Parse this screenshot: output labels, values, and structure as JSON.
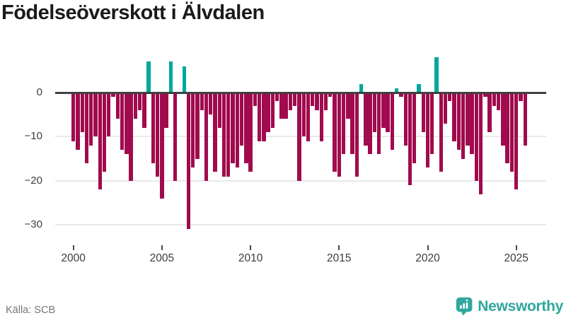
{
  "title": "Födelseöverskott i Älvdalen",
  "source": "Källa: SCB",
  "brand": {
    "name": "Newsworthy"
  },
  "colors": {
    "negative_bar": "#a10a4d",
    "positive_bar": "#00a79f",
    "zero_line": "#404040",
    "gridline": "#e9e9e9",
    "title_text": "#1a1a1a",
    "axis_text": "#3d3d3d",
    "source_text": "#757575",
    "brand_teal": "#2fa79c"
  },
  "chart_data": {
    "type": "bar",
    "title": "Födelseöverskott i Älvdalen",
    "x_tick_labels": [
      "2000",
      "2005",
      "2010",
      "2015",
      "2020",
      "2025"
    ],
    "y_tick_labels": [
      "0",
      "−10",
      "−20",
      "−30"
    ],
    "y_ticks": [
      0,
      -10,
      -20,
      -30
    ],
    "ylim": [
      -33,
      9
    ],
    "grid": "horizontal",
    "points": [
      [
        "2000Q1",
        -11
      ],
      [
        "2000Q2",
        -13
      ],
      [
        "2000Q3",
        -9
      ],
      [
        "2000Q4",
        -16
      ],
      [
        "2001Q1",
        -12
      ],
      [
        "2001Q2",
        -10
      ],
      [
        "2001Q3",
        -22
      ],
      [
        "2001Q4",
        -18
      ],
      [
        "2002Q1",
        -10
      ],
      [
        "2002Q2",
        -1
      ],
      [
        "2002Q3",
        -6
      ],
      [
        "2002Q4",
        -13
      ],
      [
        "2003Q1",
        -14
      ],
      [
        "2003Q2",
        -20
      ],
      [
        "2003Q3",
        -6
      ],
      [
        "2003Q4",
        -4
      ],
      [
        "2004Q1",
        -8
      ],
      [
        "2004Q2",
        7
      ],
      [
        "2004Q3",
        -16
      ],
      [
        "2004Q4",
        -19
      ],
      [
        "2005Q1",
        -24
      ],
      [
        "2005Q2",
        -8
      ],
      [
        "2005Q3",
        7
      ],
      [
        "2005Q4",
        -20
      ],
      [
        "2006Q1",
        0
      ],
      [
        "2006Q2",
        6
      ],
      [
        "2006Q3",
        -31
      ],
      [
        "2006Q4",
        -17
      ],
      [
        "2007Q1",
        -15
      ],
      [
        "2007Q2",
        -4
      ],
      [
        "2007Q3",
        -20
      ],
      [
        "2007Q4",
        -5
      ],
      [
        "2008Q1",
        -18
      ],
      [
        "2008Q2",
        -8
      ],
      [
        "2008Q3",
        -19
      ],
      [
        "2008Q4",
        -19
      ],
      [
        "2009Q1",
        -16
      ],
      [
        "2009Q2",
        -17
      ],
      [
        "2009Q3",
        -12
      ],
      [
        "2009Q4",
        -16
      ],
      [
        "2010Q1",
        -18
      ],
      [
        "2010Q2",
        -3
      ],
      [
        "2010Q3",
        -11
      ],
      [
        "2010Q4",
        -11
      ],
      [
        "2011Q1",
        -9
      ],
      [
        "2011Q2",
        -8
      ],
      [
        "2011Q3",
        -2
      ],
      [
        "2011Q4",
        -6
      ],
      [
        "2012Q1",
        -6
      ],
      [
        "2012Q2",
        -4
      ],
      [
        "2012Q3",
        -3
      ],
      [
        "2012Q4",
        -20
      ],
      [
        "2013Q1",
        -10
      ],
      [
        "2013Q2",
        -11
      ],
      [
        "2013Q3",
        -3
      ],
      [
        "2013Q4",
        -4
      ],
      [
        "2014Q1",
        -11
      ],
      [
        "2014Q2",
        -4
      ],
      [
        "2014Q3",
        -1
      ],
      [
        "2014Q4",
        -18
      ],
      [
        "2015Q1",
        -19
      ],
      [
        "2015Q2",
        -14
      ],
      [
        "2015Q3",
        -6
      ],
      [
        "2015Q4",
        -14
      ],
      [
        "2016Q1",
        -19
      ],
      [
        "2016Q2",
        2
      ],
      [
        "2016Q3",
        -12
      ],
      [
        "2016Q4",
        -14
      ],
      [
        "2017Q1",
        -9
      ],
      [
        "2017Q2",
        -14
      ],
      [
        "2017Q3",
        -8
      ],
      [
        "2017Q4",
        -9
      ],
      [
        "2018Q1",
        -13
      ],
      [
        "2018Q2",
        1
      ],
      [
        "2018Q3",
        -1
      ],
      [
        "2018Q4",
        -12
      ],
      [
        "2019Q1",
        -21
      ],
      [
        "2019Q2",
        -16
      ],
      [
        "2019Q3",
        2
      ],
      [
        "2019Q4",
        -9
      ],
      [
        "2020Q1",
        -17
      ],
      [
        "2020Q2",
        -14
      ],
      [
        "2020Q3",
        8
      ],
      [
        "2020Q4",
        -18
      ],
      [
        "2021Q1",
        -7
      ],
      [
        "2021Q2",
        -2
      ],
      [
        "2021Q3",
        -11
      ],
      [
        "2021Q4",
        -13
      ],
      [
        "2022Q1",
        -15
      ],
      [
        "2022Q2",
        -12
      ],
      [
        "2022Q3",
        -14
      ],
      [
        "2022Q4",
        -20
      ],
      [
        "2023Q1",
        -23
      ],
      [
        "2023Q2",
        -1
      ],
      [
        "2023Q3",
        -9
      ],
      [
        "2023Q4",
        -3
      ],
      [
        "2024Q1",
        -4
      ],
      [
        "2024Q2",
        -12
      ],
      [
        "2024Q3",
        -16
      ],
      [
        "2024Q4",
        -18
      ],
      [
        "2025Q1",
        -22
      ],
      [
        "2025Q2",
        -2
      ],
      [
        "2025Q3",
        -12
      ]
    ]
  }
}
